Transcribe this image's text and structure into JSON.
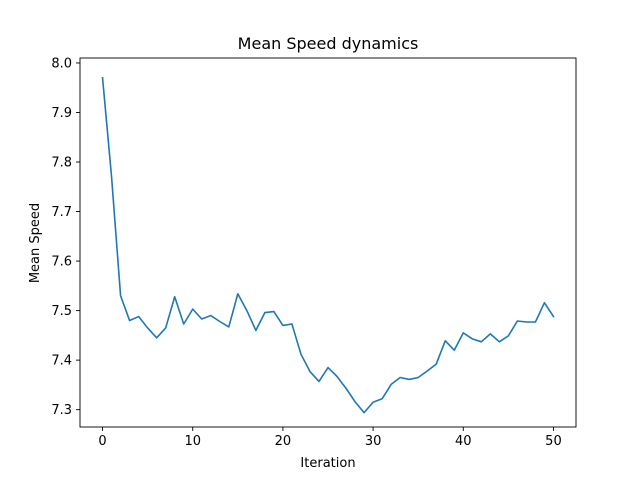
{
  "chart_data": {
    "type": "line",
    "title": "Mean Speed dynamics",
    "xlabel": "Iteration",
    "ylabel": "Mean Speed",
    "xlim": [
      -2.5,
      52.5
    ],
    "ylim": [
      7.265,
      8.01
    ],
    "xticks": [
      0,
      10,
      20,
      30,
      40,
      50
    ],
    "yticks": [
      7.3,
      7.4,
      7.5,
      7.6,
      7.7,
      7.8,
      7.9,
      8.0
    ],
    "ytick_labels": [
      "7.3",
      "7.4",
      "7.5",
      "7.6",
      "7.7",
      "7.8",
      "7.9",
      "8.0"
    ],
    "grid": false,
    "series": [
      {
        "color": "#1f77b4",
        "x": [
          0,
          1,
          2,
          3,
          4,
          5,
          6,
          7,
          8,
          9,
          10,
          11,
          12,
          13,
          14,
          15,
          16,
          17,
          18,
          19,
          20,
          21,
          22,
          23,
          24,
          25,
          26,
          27,
          28,
          29,
          30,
          31,
          32,
          33,
          34,
          35,
          36,
          37,
          38,
          39,
          40,
          41,
          42,
          43,
          44,
          45,
          46,
          47,
          48,
          49,
          50
        ],
        "values": [
          7.97,
          7.77,
          7.53,
          7.48,
          7.488,
          7.465,
          7.445,
          7.465,
          7.528,
          7.473,
          7.503,
          7.483,
          7.49,
          7.478,
          7.467,
          7.534,
          7.5,
          7.46,
          7.496,
          7.498,
          7.47,
          7.473,
          7.412,
          7.377,
          7.357,
          7.385,
          7.367,
          7.343,
          7.316,
          7.294,
          7.315,
          7.322,
          7.351,
          7.365,
          7.361,
          7.365,
          7.378,
          7.392,
          7.439,
          7.42,
          7.455,
          7.443,
          7.437,
          7.453,
          7.437,
          7.449,
          7.479,
          7.477,
          7.477,
          7.516,
          7.488
        ]
      }
    ]
  }
}
